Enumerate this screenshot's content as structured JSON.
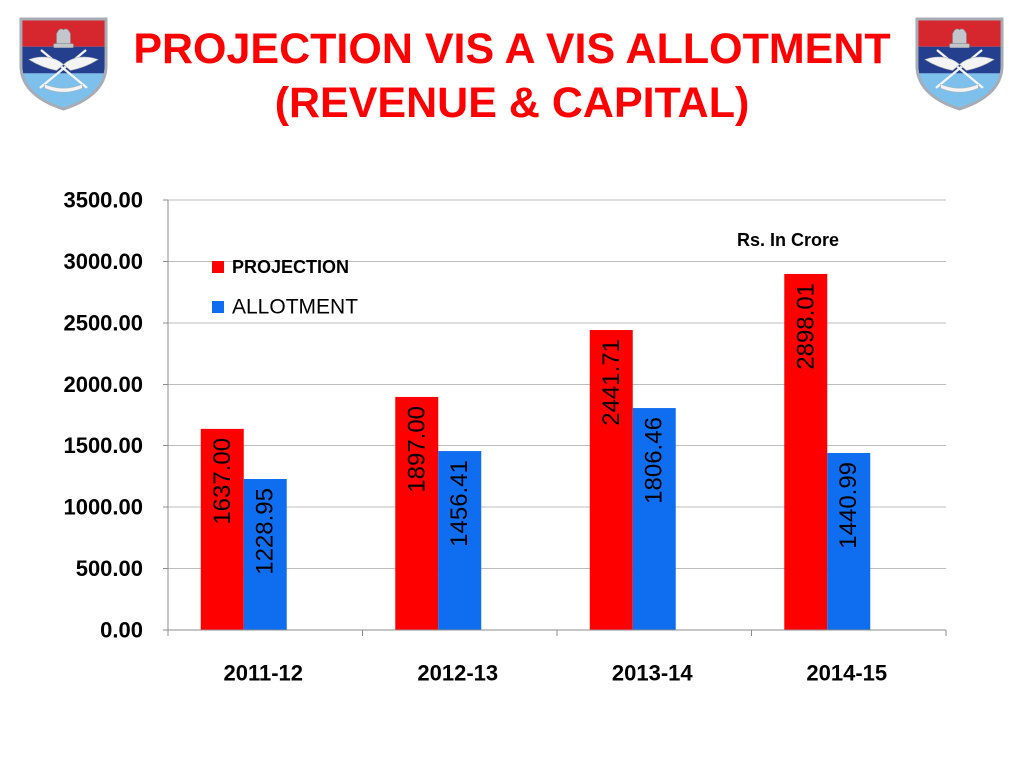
{
  "slide": {
    "title_line1": "PROJECTION VIS A VIS ALLOTMENT",
    "title_line2": "(REVENUE & CAPITAL)",
    "title_color": "#FF0000",
    "logos": {
      "left": "army-emblem-icon",
      "right": "army-emblem-icon"
    }
  },
  "chart_data": {
    "type": "bar",
    "categories": [
      "2011-12",
      "2012-13",
      "2013-14",
      "2014-15"
    ],
    "series": [
      {
        "name": "PROJECTION",
        "color": "#FF0000",
        "values": [
          1637.0,
          1897.0,
          2441.71,
          2898.01
        ],
        "data_labels": [
          "1637.00",
          "1897.00",
          "2441.71",
          "2898.01"
        ]
      },
      {
        "name": "ALLOTMENT",
        "color": "#0F6EF0",
        "values": [
          1228.95,
          1456.41,
          1806.46,
          1440.99
        ],
        "data_labels": [
          "1228.95",
          "1456.41",
          "1806.46",
          "1440.99"
        ]
      }
    ],
    "ylim": [
      0,
      3500
    ],
    "y_tick_labels": [
      "0.00",
      "500.00",
      "1000.00",
      "1500.00",
      "2000.00",
      "2500.00",
      "3000.00",
      "3500.00"
    ],
    "annotation": "Rs. In Crore",
    "legend": "top-left",
    "grid": true
  }
}
